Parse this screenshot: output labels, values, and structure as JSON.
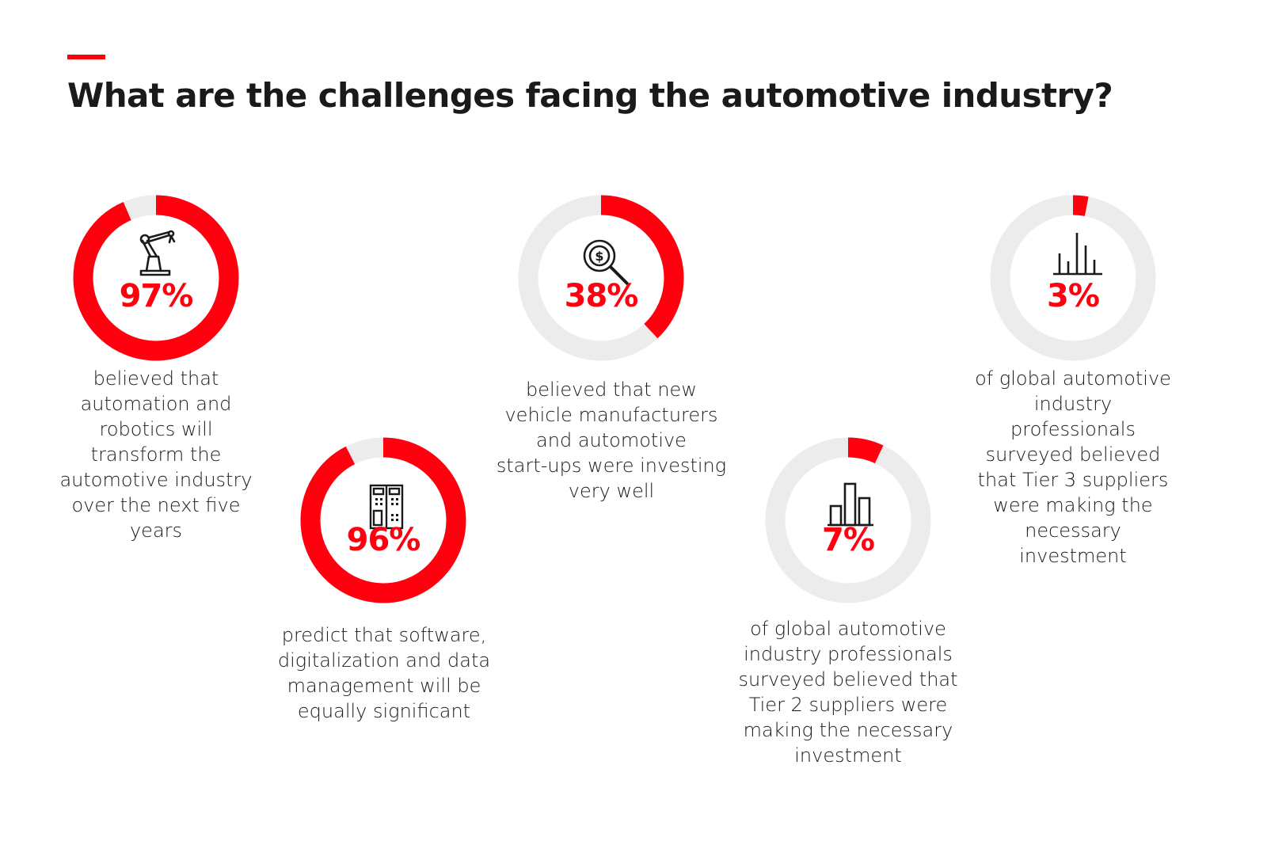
{
  "title": "What are the challenges facing the automotive industry?",
  "colors": {
    "accent": "#ff000f",
    "track": "#ececec",
    "text": "#1a1a1a"
  },
  "chart_data": {
    "type": "donut",
    "values": [
      97,
      96,
      38,
      7,
      3
    ],
    "max": 100
  },
  "stats": [
    {
      "value": 97,
      "label": "97%",
      "icon": "robotic-arm-icon",
      "caption": [
        "believed that",
        "automation and",
        "robotics will",
        "transform the",
        "automotive industry",
        "over the next five",
        "years"
      ]
    },
    {
      "value": 96,
      "label": "96%",
      "icon": "control-cabinet-icon",
      "caption": [
        "predict that software,",
        "digitalization and data",
        "management will be",
        "equally significant"
      ]
    },
    {
      "value": 38,
      "label": "38%",
      "icon": "dollar-search-icon",
      "caption": [
        "believed that new",
        "vehicle manufacturers",
        "and automotive",
        "start-ups were investing",
        "very well"
      ]
    },
    {
      "value": 7,
      "label": "7%",
      "icon": "bar-chart-icon",
      "caption": [
        "of global automotive",
        "industry professionals",
        "surveyed believed that",
        "Tier 2 suppliers were",
        "making the necessary",
        "investment"
      ]
    },
    {
      "value": 3,
      "label": "3%",
      "icon": "spike-chart-icon",
      "caption": [
        "of global automotive",
        "industry",
        "professionals",
        "surveyed believed",
        "that Tier 3 suppliers",
        "were making the",
        "necessary",
        "investment"
      ]
    }
  ]
}
